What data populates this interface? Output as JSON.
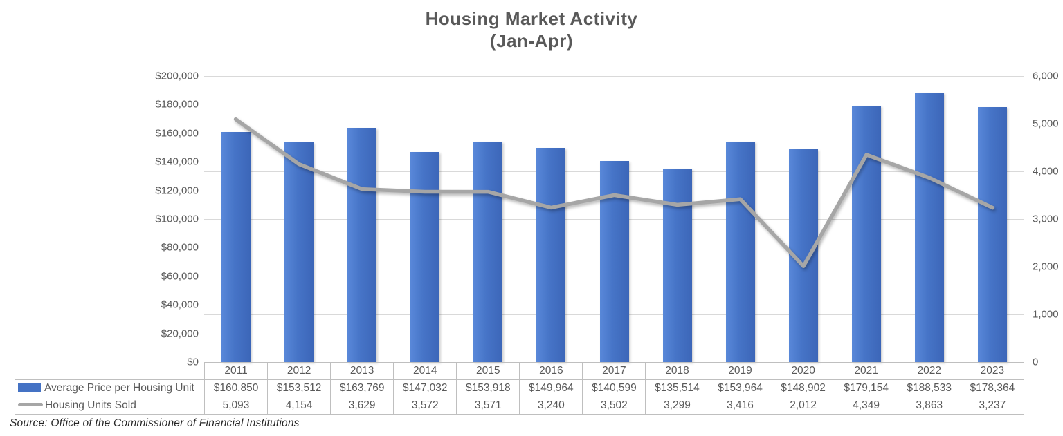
{
  "title": {
    "line1": "Housing Market Activity",
    "line2": "(Jan-Apr)"
  },
  "source_note": "Source: Office of the Commissioner of Financial Institutions",
  "colors": {
    "bar_fill": "#4472C4",
    "line_stroke": "#A6A6A6",
    "gridline": "#D9D9D9",
    "axis_text": "#595959",
    "table_border": "#BFBFBF",
    "title_text": "#595959"
  },
  "axes": {
    "left_ticks": [
      "$200,000",
      "$180,000",
      "$160,000",
      "$140,000",
      "$120,000",
      "$100,000",
      "$80,000",
      "$60,000",
      "$40,000",
      "$20,000",
      "$0"
    ],
    "right_ticks": [
      "6,000",
      "5,000",
      "4,000",
      "3,000",
      "2,000",
      "1,000",
      "0"
    ]
  },
  "chart_data": {
    "type": "bar+line",
    "title": "Housing Market Activity (Jan-Apr)",
    "categories": [
      "2011",
      "2012",
      "2013",
      "2014",
      "2015",
      "2016",
      "2017",
      "2018",
      "2019",
      "2020",
      "2021",
      "2022",
      "2023"
    ],
    "series": [
      {
        "name": "Average Price per Housing Unit",
        "type": "bar",
        "axis": "left",
        "color": "#4472C4",
        "values": [
          160850,
          153512,
          163769,
          147032,
          153918,
          149964,
          140599,
          135514,
          153964,
          148902,
          179154,
          188533,
          178364
        ]
      },
      {
        "name": "Housing Units Sold",
        "type": "line",
        "axis": "right",
        "color": "#A6A6A6",
        "values": [
          5093,
          4154,
          3629,
          3572,
          3571,
          3240,
          3502,
          3299,
          3416,
          2012,
          4349,
          3863,
          3237
        ]
      }
    ],
    "left_axis": {
      "min": 0,
      "max": 200000,
      "tick_step": 20000,
      "format": "$#,##0"
    },
    "right_axis": {
      "min": 0,
      "max": 6000,
      "tick_step": 1000
    },
    "grid": "horizontal major gridlines aligned to right axis (every 1,000)",
    "legend_position": "attached data table, left column"
  },
  "table": {
    "header_years": [
      "2011",
      "2012",
      "2013",
      "2014",
      "2015",
      "2016",
      "2017",
      "2018",
      "2019",
      "2020",
      "2021",
      "2022",
      "2023"
    ],
    "rows": [
      {
        "label": "Average Price per Housing Unit",
        "swatch": "bar",
        "cells": [
          "$160,850",
          "$153,512",
          "$163,769",
          "$147,032",
          "$153,918",
          "$149,964",
          "$140,599",
          "$135,514",
          "$153,964",
          "$148,902",
          "$179,154",
          "$188,533",
          "$178,364"
        ]
      },
      {
        "label": "Housing Units Sold",
        "swatch": "line",
        "cells": [
          "5,093",
          "4,154",
          "3,629",
          "3,572",
          "3,571",
          "3,240",
          "3,502",
          "3,299",
          "3,416",
          "2,012",
          "4,349",
          "3,863",
          "3,237"
        ]
      }
    ]
  }
}
